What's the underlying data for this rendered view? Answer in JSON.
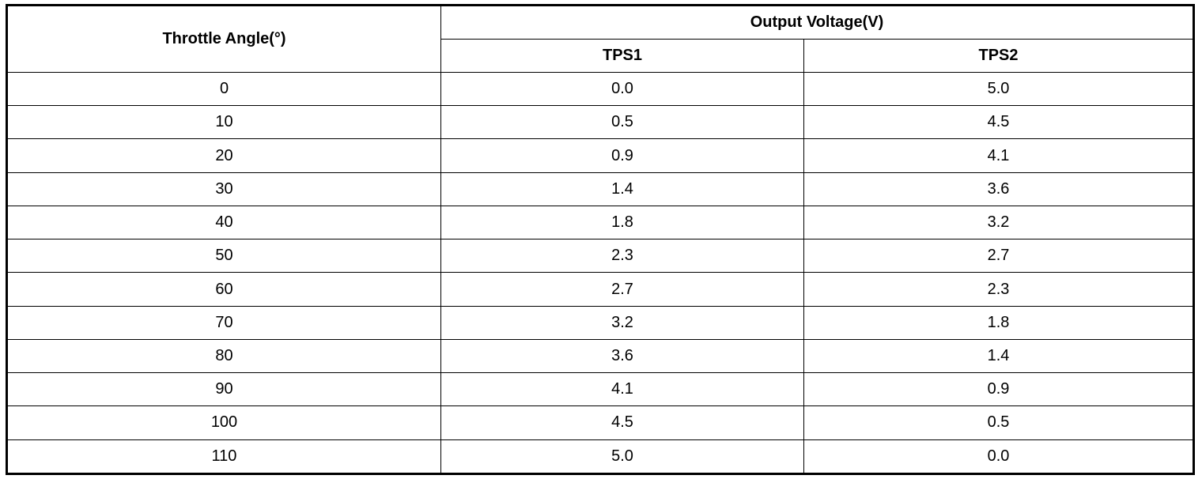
{
  "table": {
    "header": {
      "angle": "Throttle Angle(°)",
      "output": "Output Voltage(V)",
      "tps1": "TPS1",
      "tps2": "TPS2"
    },
    "rows": [
      [
        "0",
        "0.0",
        "5.0"
      ],
      [
        "10",
        "0.5",
        "4.5"
      ],
      [
        "20",
        "0.9",
        "4.1"
      ],
      [
        "30",
        "1.4",
        "3.6"
      ],
      [
        "40",
        "1.8",
        "3.2"
      ],
      [
        "50",
        "2.3",
        "2.7"
      ],
      [
        "60",
        "2.7",
        "2.3"
      ],
      [
        "70",
        "3.2",
        "1.8"
      ],
      [
        "80",
        "3.6",
        "1.4"
      ],
      [
        "90",
        "4.1",
        "0.9"
      ],
      [
        "100",
        "4.5",
        "0.5"
      ],
      [
        "110",
        "5.0",
        "0.0"
      ]
    ]
  }
}
